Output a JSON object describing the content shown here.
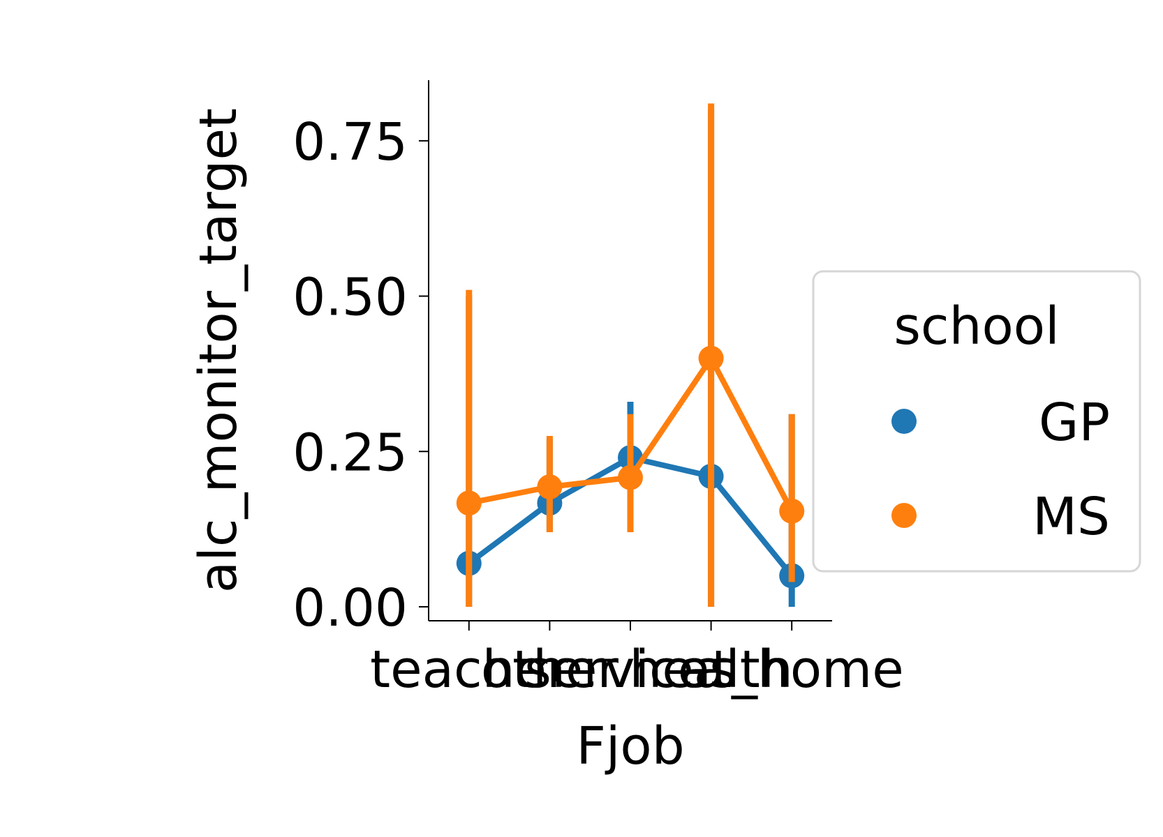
{
  "chart_data": {
    "type": "line",
    "xlabel": "Fjob",
    "ylabel": "alc_monitor_target",
    "categories": [
      "teacher",
      "other",
      "services",
      "health",
      "at_home"
    ],
    "ylim": [
      -0.0225,
      0.8475
    ],
    "yticks": [
      0.0,
      0.25,
      0.5,
      0.75
    ],
    "ytick_labels": [
      "0.00",
      "0.25",
      "0.50",
      "0.75"
    ],
    "grid": false,
    "legend": {
      "title": "school",
      "placement": "right",
      "entries": [
        "GP",
        "MS"
      ]
    },
    "series": [
      {
        "name": "GP",
        "color": "#1f77b4",
        "values": [
          0.07,
          0.167,
          0.24,
          0.21,
          0.05
        ],
        "ci_low": [
          0.0,
          0.12,
          0.15,
          0.0,
          0.0
        ],
        "ci_high": [
          0.5,
          0.27,
          0.33,
          0.8,
          0.31
        ]
      },
      {
        "name": "MS",
        "color": "#ff7f0e",
        "values": [
          0.167,
          0.193,
          0.208,
          0.4,
          0.154
        ],
        "ci_low": [
          0.0,
          0.12,
          0.12,
          0.0,
          0.04
        ],
        "ci_high": [
          0.51,
          0.275,
          0.31,
          0.81,
          0.31
        ]
      }
    ]
  }
}
